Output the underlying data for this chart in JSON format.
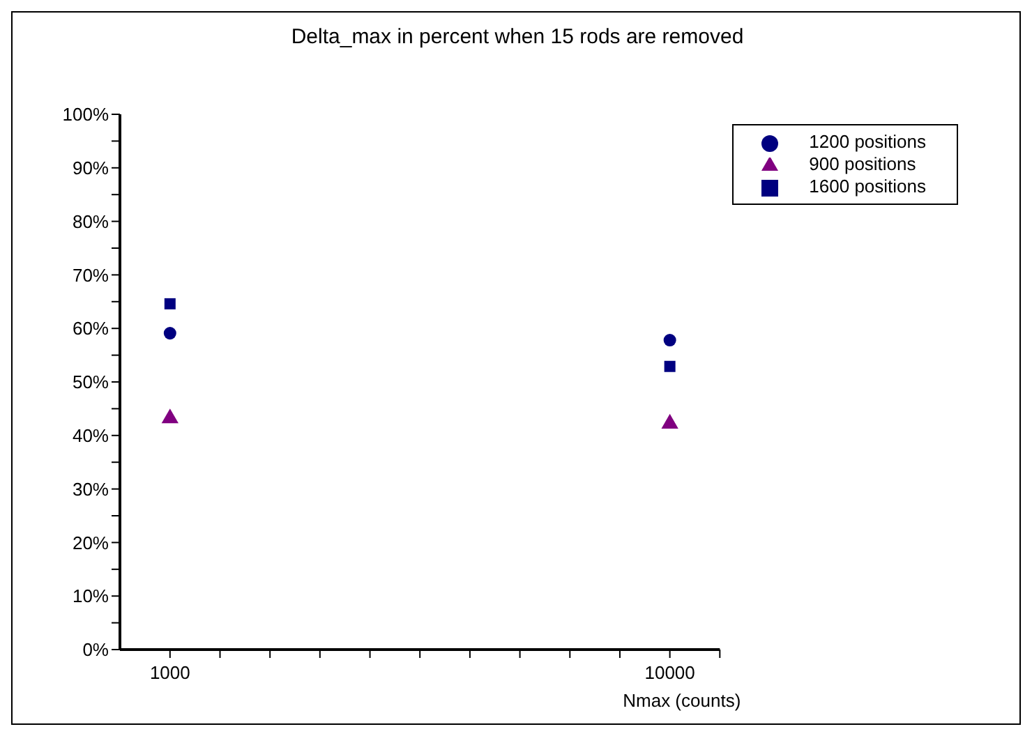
{
  "chart_data": {
    "type": "scatter",
    "title": "Delta_max in percent when 15 rods are removed",
    "xlabel": "Nmax  (counts)",
    "log": "x",
    "x": [
      1000,
      10000
    ],
    "series": [
      {
        "name": "1200 positions",
        "color": "#000080",
        "marker": "circle",
        "values": [
          59.1,
          57.8
        ]
      },
      {
        "name": "900 positions",
        "color": "#800080",
        "marker": "triangle",
        "values": [
          43.2,
          42.2
        ]
      },
      {
        "name": "1600 positions",
        "color": "#000080",
        "marker": "square",
        "values": [
          64.6,
          52.9
        ]
      }
    ],
    "xlim": [
      794,
      12589
    ],
    "xticks": [
      1000,
      {
        "value": 1259,
        "label": null
      },
      {
        "value": 1585,
        "label": null
      },
      {
        "value": 1995,
        "label": null
      },
      {
        "value": 2512,
        "label": null
      },
      {
        "value": 3162,
        "label": null
      },
      {
        "value": 3981,
        "label": null
      },
      {
        "value": 5012,
        "label": null
      },
      {
        "value": 6310,
        "label": null
      },
      {
        "value": 7943,
        "label": null
      },
      10000,
      {
        "value": 12589,
        "label": null
      }
    ],
    "ylim": [
      0,
      100
    ],
    "yticks": [
      {
        "value": 0,
        "label": "0%"
      },
      {
        "value": 5,
        "label": null
      },
      {
        "value": 10,
        "label": "10%"
      },
      {
        "value": 15,
        "label": null
      },
      {
        "value": 20,
        "label": "20%"
      },
      {
        "value": 25,
        "label": null
      },
      {
        "value": 30,
        "label": "30%"
      },
      {
        "value": 35,
        "label": null
      },
      {
        "value": 40,
        "label": "40%"
      },
      {
        "value": 45,
        "label": null
      },
      {
        "value": 50,
        "label": "50%"
      },
      {
        "value": 55,
        "label": null
      },
      {
        "value": 60,
        "label": "60%"
      },
      {
        "value": 65,
        "label": null
      },
      {
        "value": 70,
        "label": "70%"
      },
      {
        "value": 75,
        "label": null
      },
      {
        "value": 80,
        "label": "80%"
      },
      {
        "value": 85,
        "label": null
      },
      {
        "value": 90,
        "label": "90%"
      },
      {
        "value": 95,
        "label": null
      },
      {
        "value": 100,
        "label": "100%"
      }
    ],
    "grid": false,
    "legend": "top right"
  }
}
